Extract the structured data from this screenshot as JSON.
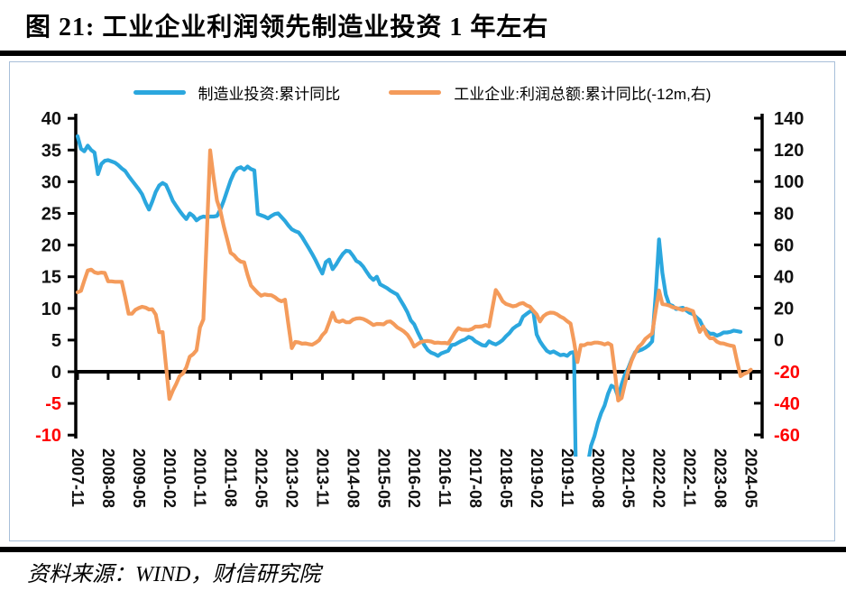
{
  "page": {
    "title": "图 21:  工业企业利润领先制造业投资 1 年左右",
    "source": "资料来源：WIND，财信研究院"
  },
  "legend": {
    "items": [
      {
        "label": "制造业投资:累计同比",
        "color": "#2ba7de"
      },
      {
        "label": "工业企业:利润总额:累计同比(-12m,右)",
        "color": "#f49b5b"
      }
    ]
  },
  "chart_data": {
    "type": "line",
    "title": "工业企业利润领先制造业投资1年左右",
    "x_unit": "month",
    "x_start": "2007-11",
    "x_end": "2024-05",
    "x_tick_interval_months": 9,
    "x_tick_labels": [
      "2007-11",
      "2008-08",
      "2009-05",
      "2010-02",
      "2010-11",
      "2011-08",
      "2012-05",
      "2013-02",
      "2013-11",
      "2014-08",
      "2015-05",
      "2016-02",
      "2016-11",
      "2017-08",
      "2018-05",
      "2019-02",
      "2019-11",
      "2020-08",
      "2021-05",
      "2022-02",
      "2022-11",
      "2023-08",
      "2024-05"
    ],
    "left_axis": {
      "min": -10,
      "max": 40,
      "ticks": [
        40,
        35,
        30,
        25,
        20,
        15,
        10,
        5,
        0,
        -5,
        -10
      ],
      "tick_color": "#111111",
      "negative_tick_color": "#ff0000"
    },
    "right_axis": {
      "min": -60,
      "max": 140,
      "ticks": [
        140,
        120,
        100,
        80,
        60,
        40,
        20,
        0,
        -20,
        -40,
        -60
      ],
      "tick_color": "#111111",
      "negative_tick_color": "#ff0000"
    },
    "grid": false,
    "legend_position": "top",
    "series": [
      {
        "name": "制造业投资:累计同比",
        "axis": "left",
        "color": "#2ba7de",
        "values": [
          37.2,
          35.2,
          34.8,
          35.7,
          35.0,
          34.6,
          31.2,
          32.8,
          33.3,
          33.4,
          33.2,
          33.0,
          32.6,
          32.1,
          31.7,
          30.9,
          30.2,
          29.5,
          28.8,
          28.0,
          26.7,
          25.6,
          26.9,
          28.4,
          29.4,
          29.8,
          29.5,
          28.3,
          27.0,
          26.2,
          25.4,
          24.7,
          24.1,
          25.0,
          24.6,
          23.9,
          24.3,
          24.5,
          24.4,
          24.5,
          24.5,
          24.6,
          25.6,
          27.0,
          28.6,
          30.2,
          31.4,
          32.1,
          32.3,
          31.9,
          32.4,
          32.0,
          31.8,
          24.9,
          24.7,
          24.5,
          24.2,
          24.6,
          24.9,
          25.0,
          24.4,
          23.8,
          23.1,
          22.5,
          22.2,
          22.0,
          21.3,
          20.4,
          19.5,
          18.6,
          17.6,
          16.5,
          15.5,
          17.3,
          17.7,
          16.2,
          16.9,
          17.8,
          18.6,
          19.1,
          19.0,
          18.3,
          17.5,
          17.2,
          16.6,
          15.8,
          15.0,
          14.5,
          15.0,
          13.8,
          13.5,
          13.2,
          12.8,
          12.5,
          12.2,
          11.3,
          10.4,
          9.4,
          8.1,
          7.5,
          6.3,
          5.2,
          4.2,
          3.4,
          3.0,
          2.8,
          2.5,
          2.9,
          3.1,
          3.3,
          4.2,
          4.3,
          4.6,
          4.9,
          5.1,
          5.5,
          5.3,
          4.8,
          4.5,
          4.2,
          4.1,
          4.8,
          4.5,
          4.3,
          4.6,
          5.0,
          5.6,
          6.1,
          6.8,
          7.2,
          7.5,
          8.7,
          9.1,
          9.5,
          9.6,
          5.9,
          4.8,
          4.0,
          3.3,
          3.0,
          3.2,
          2.9,
          2.6,
          2.7,
          2.5,
          3.0,
          3.1,
          -31.5,
          -25.2,
          -18.8,
          -14.8,
          -11.7,
          -10.2,
          -8.1,
          -6.5,
          -5.3,
          -3.5,
          -2.2,
          -2.5,
          -4.0,
          -2.0,
          -0.4,
          0.6,
          2.0,
          3.1,
          3.3,
          3.5,
          3.8,
          4.2,
          4.8,
          12.0,
          20.9,
          15.6,
          12.2,
          10.6,
          10.4,
          9.9,
          10.0,
          10.1,
          9.7,
          9.3,
          9.1,
          8.6,
          8.1,
          7.0,
          6.4,
          6.0,
          6.0,
          5.7,
          5.9,
          6.2,
          6.2,
          6.3,
          6.5,
          6.4,
          6.3,
          null,
          null,
          null
        ]
      },
      {
        "name": "工业企业:利润总额:累计同比(-12m,右)",
        "axis": "right",
        "color": "#f49b5b",
        "values": [
          30.1,
          31.0,
          37.5,
          43.8,
          44.4,
          42.7,
          42.1,
          42.5,
          42.3,
          37.0,
          37.0,
          36.7,
          36.7,
          36.7,
          27.0,
          16.5,
          16.5,
          19.0,
          20.1,
          20.9,
          20.4,
          19.2,
          19.4,
          16.0,
          4.9,
          4.9,
          -16.0,
          -37.3,
          -32.0,
          -27.9,
          -22.9,
          -21.2,
          -17.3,
          -10.6,
          -9.0,
          -6.5,
          7.8,
          13.0,
          66.0,
          119.7,
          102.6,
          88.0,
          81.6,
          71.8,
          63.5,
          55.0,
          53.5,
          51.0,
          49.4,
          49.0,
          41.0,
          34.3,
          32.0,
          29.7,
          27.9,
          28.7,
          28.3,
          28.2,
          27.0,
          25.3,
          24.4,
          25.4,
          10.0,
          -5.2,
          -1.3,
          -1.6,
          -2.4,
          -2.2,
          -2.7,
          -3.1,
          -1.8,
          -0.3,
          3.0,
          5.3,
          11.0,
          17.2,
          12.1,
          11.4,
          12.3,
          11.1,
          11.1,
          12.8,
          13.5,
          13.7,
          13.2,
          12.2,
          10.8,
          9.4,
          10.1,
          10.0,
          9.8,
          11.4,
          11.7,
          10.0,
          7.9,
          6.7,
          5.3,
          3.3,
          0.0,
          -4.2,
          -2.7,
          -1.3,
          -0.8,
          -0.7,
          -1.0,
          -1.9,
          -1.7,
          -2.0,
          -1.9,
          -2.3,
          1.0,
          4.8,
          7.4,
          6.5,
          6.4,
          6.2,
          6.9,
          8.4,
          8.4,
          8.6,
          9.4,
          8.5,
          20.0,
          31.5,
          28.3,
          24.4,
          22.7,
          22.0,
          21.2,
          21.6,
          22.8,
          23.3,
          21.9,
          21.0,
          18.5,
          16.1,
          11.6,
          15.0,
          16.5,
          17.2,
          17.1,
          16.2,
          14.7,
          13.6,
          11.8,
          10.3,
          -1.0,
          -14.0,
          -3.3,
          -3.4,
          -2.3,
          -2.4,
          -1.7,
          -1.7,
          -2.1,
          -2.9,
          -2.1,
          -3.3,
          -20.0,
          -38.3,
          -36.7,
          -27.4,
          -19.3,
          -12.8,
          -8.1,
          -4.4,
          -2.4,
          0.7,
          2.4,
          4.1,
          18.0,
          31.2,
          22.6,
          22.3,
          21.7,
          20.6,
          20.2,
          19.5,
          18.8,
          19.7,
          18.9,
          18.2,
          11.0,
          5.0,
          8.5,
          3.5,
          1.0,
          1.0,
          -1.1,
          -2.1,
          -2.3,
          -3.0,
          -3.6,
          -4.0,
          -14.0,
          -22.9,
          -21.4,
          -20.6,
          -18.8
        ]
      }
    ]
  }
}
